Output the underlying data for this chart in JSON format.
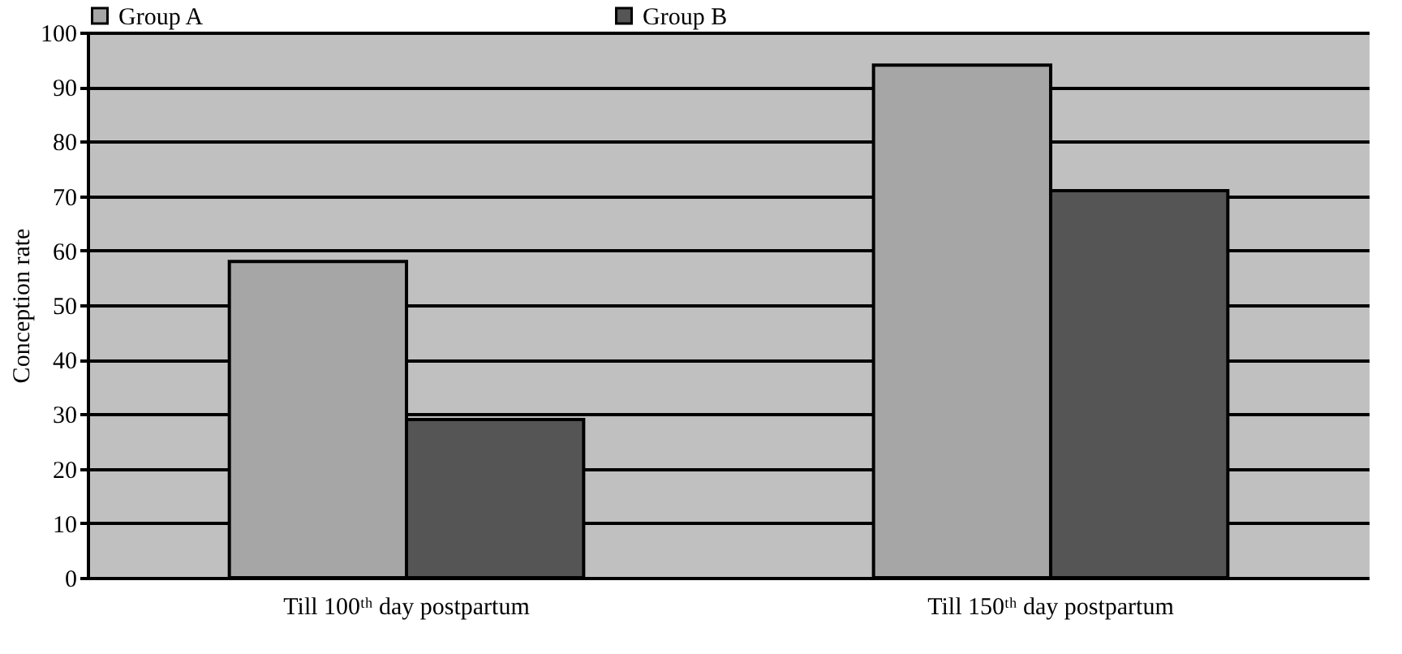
{
  "chart_data": {
    "type": "bar",
    "ylabel": "Conception rate",
    "categories": [
      "Till 100ᵗʰ day postpartum",
      "Till 150ᵗʰ day postpartum"
    ],
    "series": [
      {
        "name": "Group A",
        "color": "#a6a6a6",
        "values": [
          58,
          94
        ]
      },
      {
        "name": "Group B",
        "color": "#555555",
        "values": [
          29,
          71
        ]
      }
    ],
    "ylim": [
      0,
      100
    ],
    "yticks": [
      0,
      10,
      20,
      30,
      40,
      50,
      60,
      70,
      80,
      90,
      100
    ],
    "grid": "y",
    "legend": "top"
  }
}
